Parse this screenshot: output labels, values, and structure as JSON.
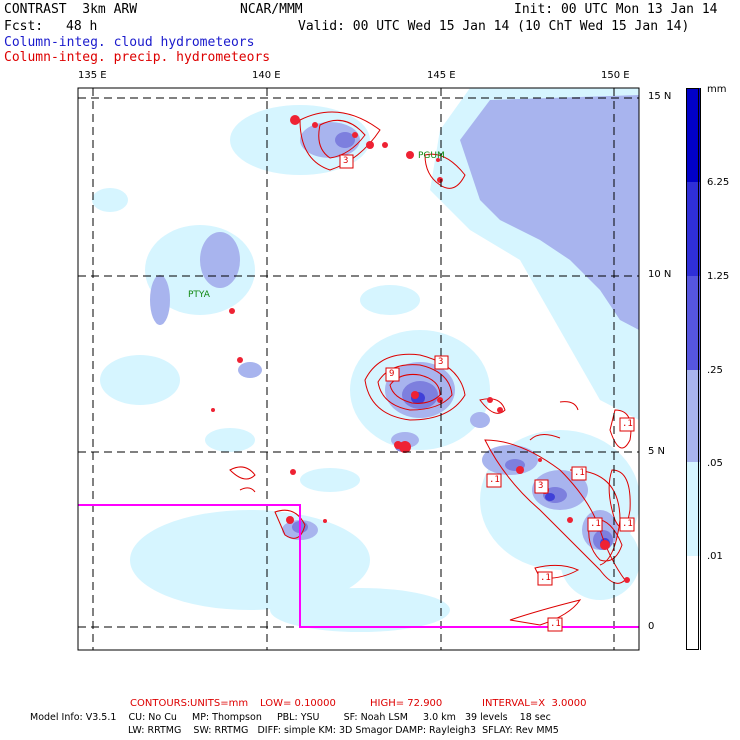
{
  "header": {
    "model": "CONTRAST  3km ARW",
    "org": "NCAR/MMM",
    "init": "Init: 00 UTC Mon 13 Jan 14",
    "fcst_label": "Fcst:",
    "fcst_value": "48 h",
    "valid": "Valid: 00 UTC Wed 15 Jan 14 (10 ChT Wed 15 Jan 14)",
    "legend_cloud": "Column-integ. cloud hydrometeors",
    "legend_precip": "Column-integ. precip. hydrometeors"
  },
  "map": {
    "lon_labels": [
      "135 E",
      "140 E",
      "145 E",
      "150 E"
    ],
    "lat_labels": [
      "15 N",
      "10 N",
      "5 N",
      "0"
    ],
    "place_labels": [
      "PGUM",
      "PTYA"
    ],
    "contour_labels": [
      "3",
      "3",
      "9",
      "3",
      ".1",
      ".1",
      "3",
      ".1",
      ".1",
      ".1",
      ".1",
      ".1"
    ],
    "colors": {
      "fill_0": "#ffffff",
      "fill_1": "#d6f5ff",
      "fill_2": "#a8b4ee",
      "fill_3": "#7d7fde",
      "fill_4": "#5656e0",
      "fill_5": "#2f2fd8",
      "fill_6": "#0000c8",
      "contour": "#dd0000",
      "box": "#ff00ff"
    }
  },
  "colorbar": {
    "unit": "mm",
    "labels": [
      "6.25",
      "1.25",
      ".25",
      ".05",
      ".01"
    ]
  },
  "footer": {
    "contours_label": "CONTOURS:",
    "units": "UNITS=mm",
    "low": "LOW= 0.10000",
    "high": "HIGH= 72.900",
    "interval": "INTERVAL=X  3.0000",
    "line1": "Model Info: V3.5.1    CU: No Cu     MP: Thompson     PBL: YSU        SF: Noah LSM     3.0 km   39 levels    18 sec",
    "line2": "LW: RRTMG    SW: RRTMG   DIFF: simple KM: 3D Smagor DAMP: Rayleigh3  SFLAY: Rev MM5"
  }
}
